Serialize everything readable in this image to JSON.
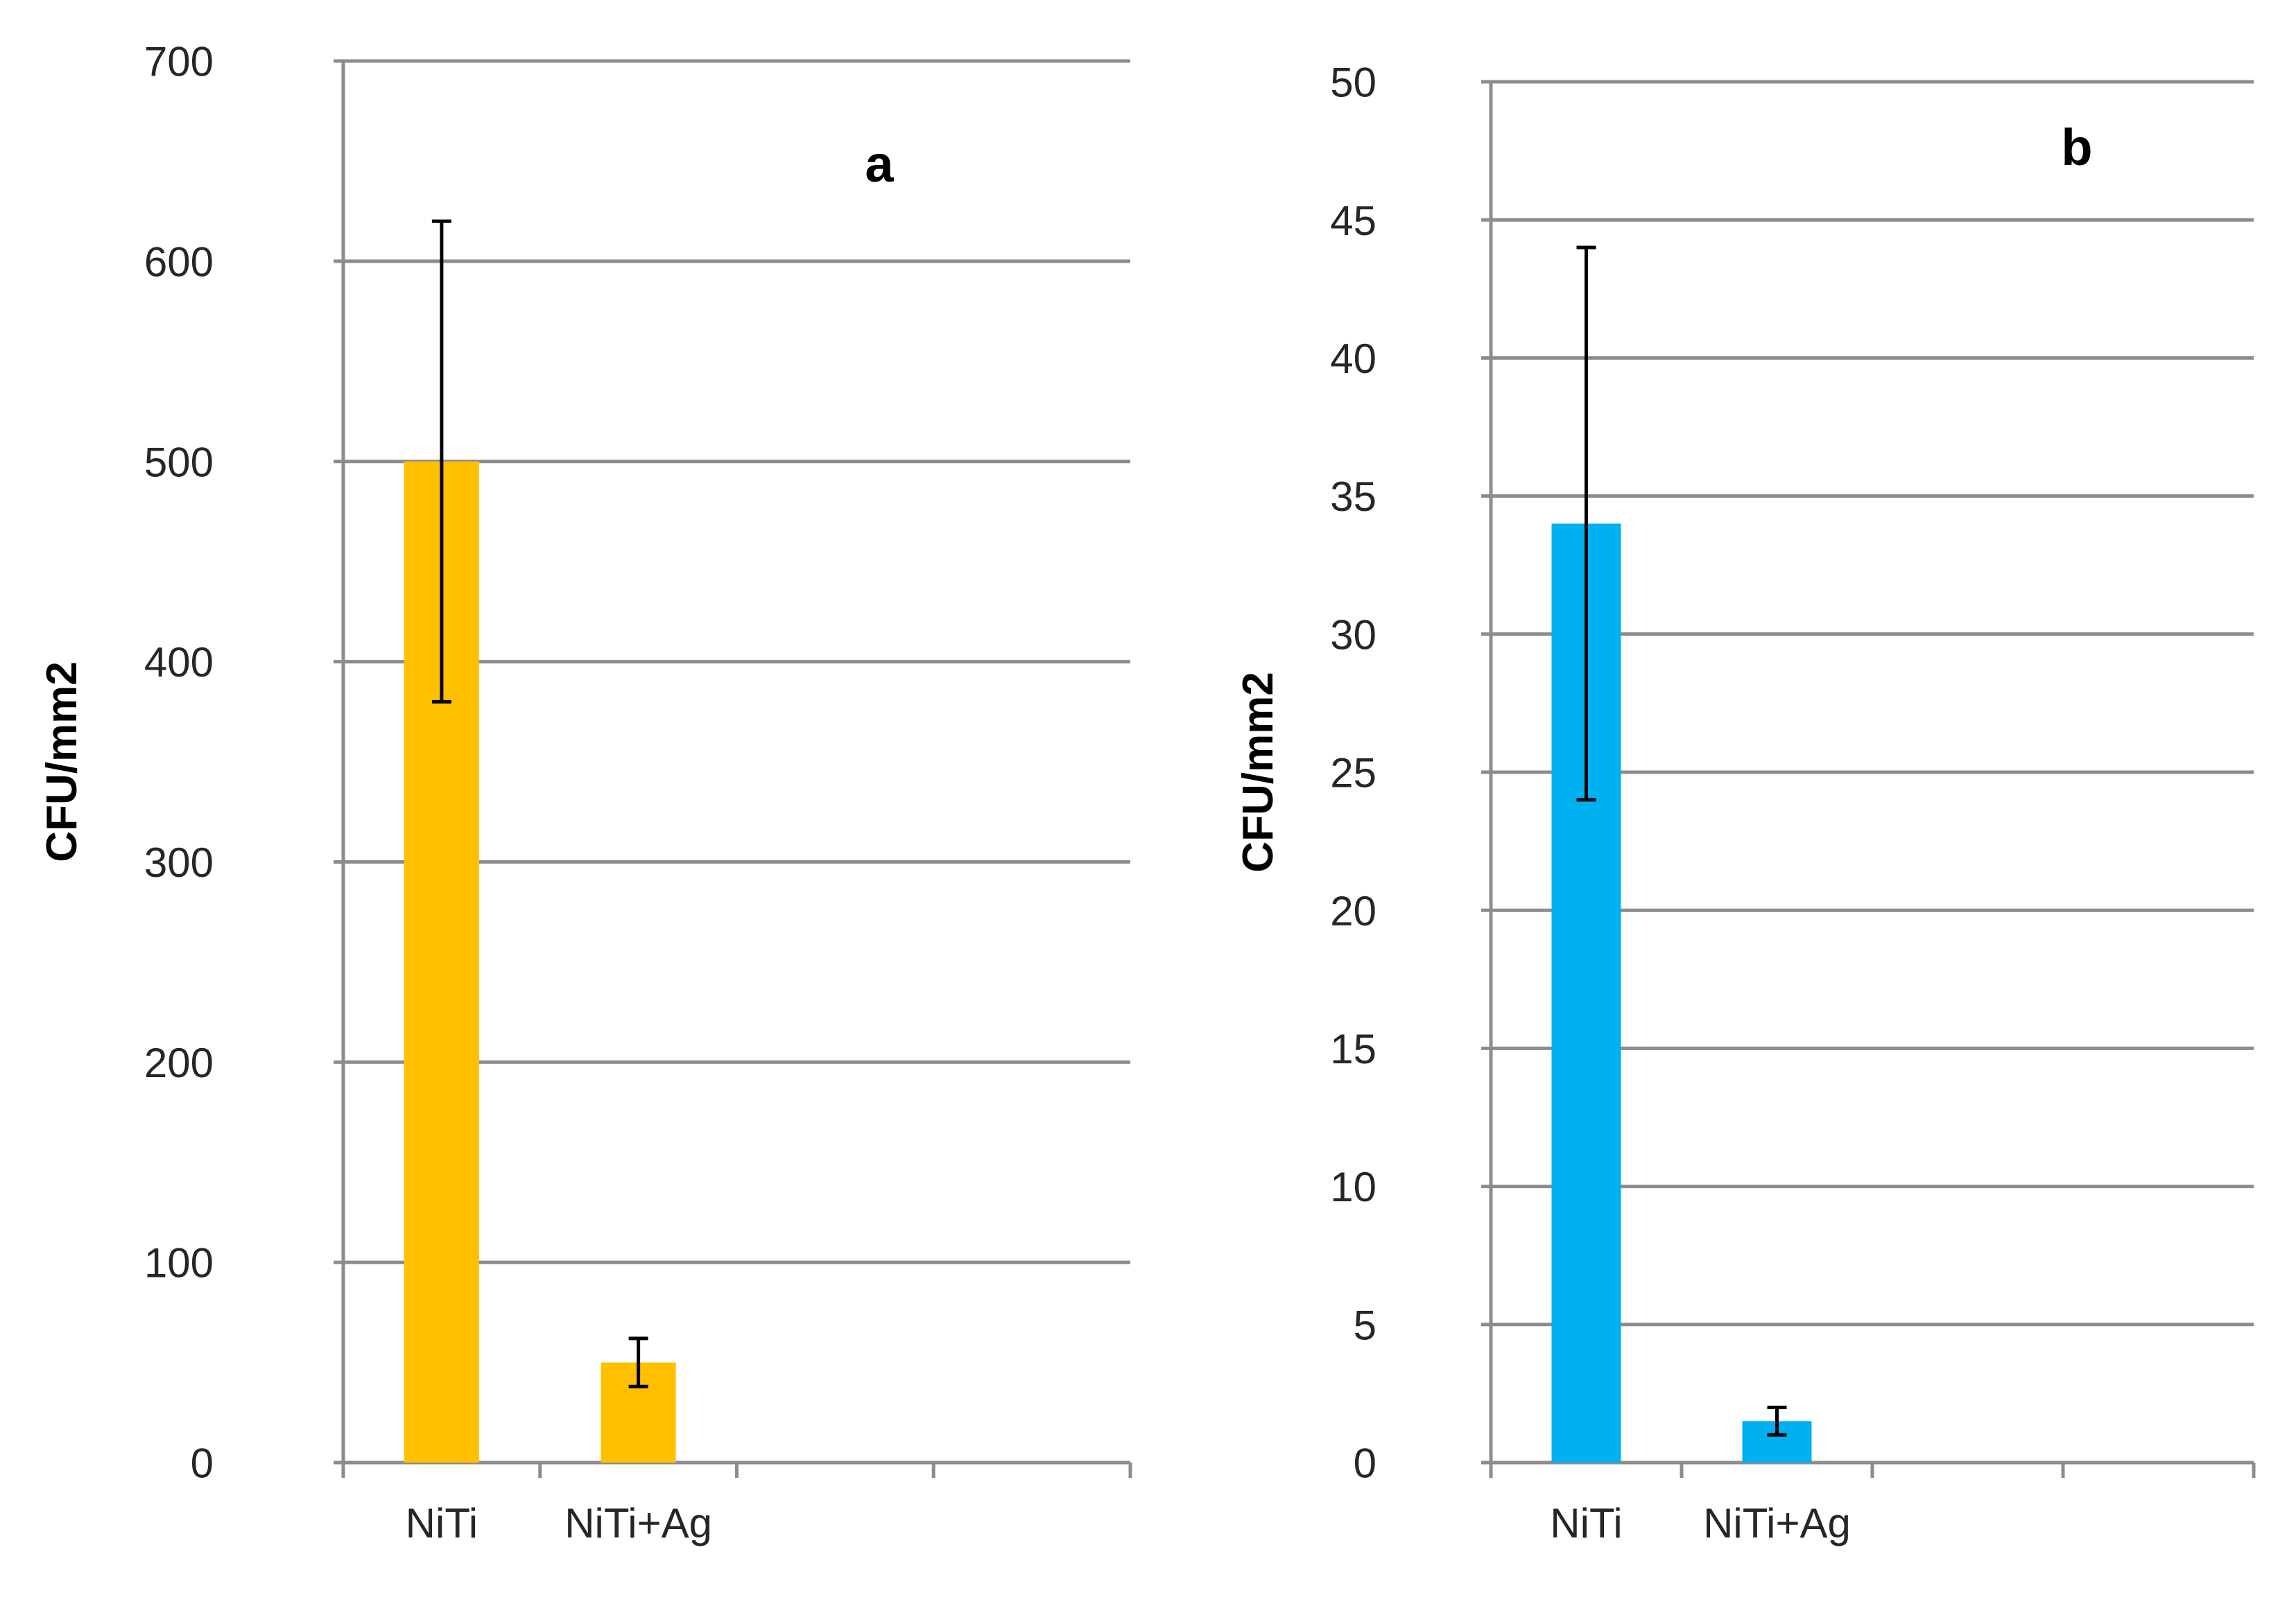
{
  "figure": {
    "background": "#ffffff",
    "gridline_color": "#8c8c8c",
    "error_bar_color": "#000000"
  },
  "chart_data": [
    {
      "type": "bar",
      "panel_label": "a",
      "categories": [
        "NiTi",
        "NiTi+Ag"
      ],
      "values": [
        500,
        50
      ],
      "error_low": [
        380,
        38
      ],
      "error_high": [
        620,
        62
      ],
      "ylabel": "CFU/mm2",
      "xlabel": "",
      "ylim": [
        0,
        700
      ],
      "yticks": [
        0,
        100,
        200,
        300,
        400,
        500,
        600,
        700
      ],
      "ytick_labels": [
        "0",
        "100",
        "200",
        "300",
        "400",
        "500",
        "600",
        "700"
      ],
      "x_slots": 4,
      "grid": true,
      "legend": "none",
      "bar_color": "#FFC000"
    },
    {
      "type": "bar",
      "panel_label": "b",
      "categories": [
        "NiTi",
        "NiTi+Ag"
      ],
      "values": [
        34,
        1.5
      ],
      "error_low": [
        24,
        1.0
      ],
      "error_high": [
        44,
        2.0
      ],
      "ylabel": "CFU/mm2",
      "xlabel": "",
      "ylim": [
        0,
        50
      ],
      "yticks": [
        0,
        5,
        10,
        15,
        20,
        25,
        30,
        35,
        40,
        45,
        50
      ],
      "ytick_labels": [
        "0",
        "5",
        "10",
        "15",
        "20",
        "25",
        "30",
        "35",
        "40",
        "45",
        "50"
      ],
      "x_slots": 4,
      "grid": true,
      "legend": "none",
      "bar_color": "#00B0F0"
    }
  ]
}
